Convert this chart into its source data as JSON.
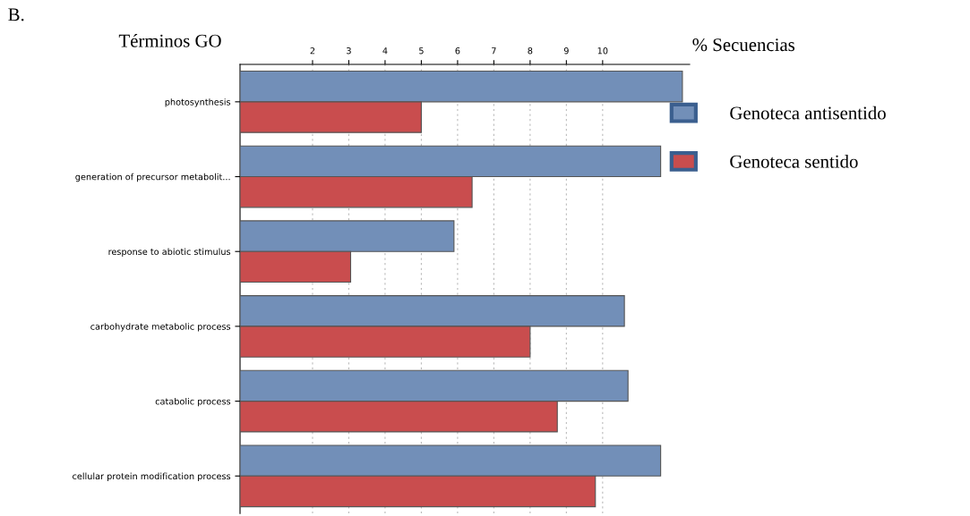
{
  "chart_data": {
    "type": "bar",
    "orientation": "horizontal",
    "title": "B.",
    "xlabel": "% Secuencias",
    "ylabel": "Términos GO",
    "categories": [
      "photosynthesis",
      "generation of precursor metabolit...",
      "response to abiotic stimulus",
      "carbohydrate metabolic process",
      "catabolic process",
      "cellular protein modification process"
    ],
    "series": [
      {
        "name": "Genoteca antisentido",
        "color": "#728fb8",
        "values": [
          12.2,
          11.6,
          5.9,
          10.6,
          10.7,
          11.6
        ]
      },
      {
        "name": "Genoteca sentido",
        "color": "#c94d4e",
        "values": [
          5.0,
          6.4,
          3.05,
          8.0,
          8.75,
          9.8
        ]
      }
    ],
    "xlim": [
      0,
      12.4
    ],
    "xticks": [
      2,
      3,
      4,
      5,
      6,
      7,
      8,
      9,
      10
    ],
    "grid": "x",
    "legend": "right"
  }
}
